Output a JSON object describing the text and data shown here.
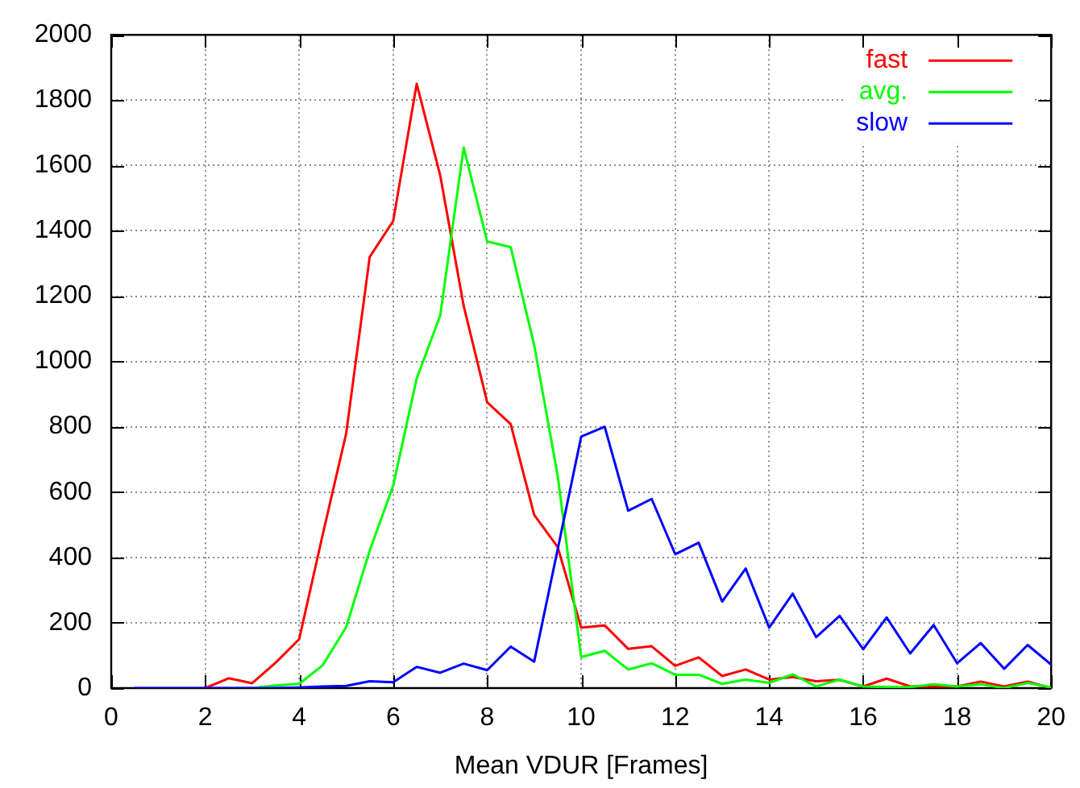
{
  "chart_data": {
    "type": "line",
    "xlabel": "Mean VDUR [Frames]",
    "x": [
      0.5,
      1,
      1.5,
      2,
      2.5,
      3,
      3.5,
      4,
      4.5,
      5,
      5.5,
      6,
      6.5,
      7,
      7.5,
      8,
      8.5,
      9,
      9.5,
      10,
      10.5,
      11,
      11.5,
      12,
      12.5,
      13,
      13.5,
      14,
      14.5,
      15,
      15.5,
      16,
      16.5,
      17,
      17.5,
      18,
      18.5,
      19,
      19.5,
      20
    ],
    "series": [
      {
        "name": "fast",
        "color": "#ff0000",
        "values": [
          null,
          null,
          null,
          0,
          30,
          15,
          78,
          150,
          470,
          780,
          1320,
          1430,
          1850,
          1570,
          1170,
          875,
          808,
          530,
          432,
          185,
          192,
          120,
          128,
          68,
          94,
          37,
          57,
          26,
          34,
          21,
          25,
          5,
          29,
          5,
          5,
          5,
          20,
          5,
          20,
          0
        ]
      },
      {
        "name": "avg.",
        "color": "#00ff00",
        "values": [
          null,
          null,
          null,
          null,
          null,
          0,
          8,
          13,
          70,
          187,
          421,
          620,
          948,
          1140,
          1655,
          1367,
          1350,
          1050,
          650,
          95,
          114,
          57,
          76,
          41,
          41,
          13,
          26,
          16,
          42,
          5,
          26,
          5,
          3,
          3,
          12,
          5,
          12,
          0,
          16,
          2
        ]
      },
      {
        "name": "slow",
        "color": "#0000ff",
        "values": [
          0,
          0,
          0,
          0,
          0,
          0,
          0,
          2,
          5,
          7,
          21,
          18,
          65,
          47,
          75,
          55,
          127,
          81,
          425,
          770,
          800,
          543,
          579,
          410,
          445,
          265,
          366,
          185,
          289,
          156,
          221,
          119,
          216,
          106,
          193,
          76,
          138,
          59,
          132,
          72
        ]
      }
    ],
    "xlim": [
      0,
      20
    ],
    "xticks": [
      0,
      2,
      4,
      6,
      8,
      10,
      12,
      14,
      16,
      18,
      20
    ],
    "ylim": [
      0,
      2000
    ],
    "yticks": [
      0,
      200,
      400,
      600,
      800,
      1000,
      1200,
      1400,
      1600,
      1800,
      2000
    ],
    "grid": true,
    "legend": "top right",
    "marker": "none",
    "line_style": "solid"
  }
}
